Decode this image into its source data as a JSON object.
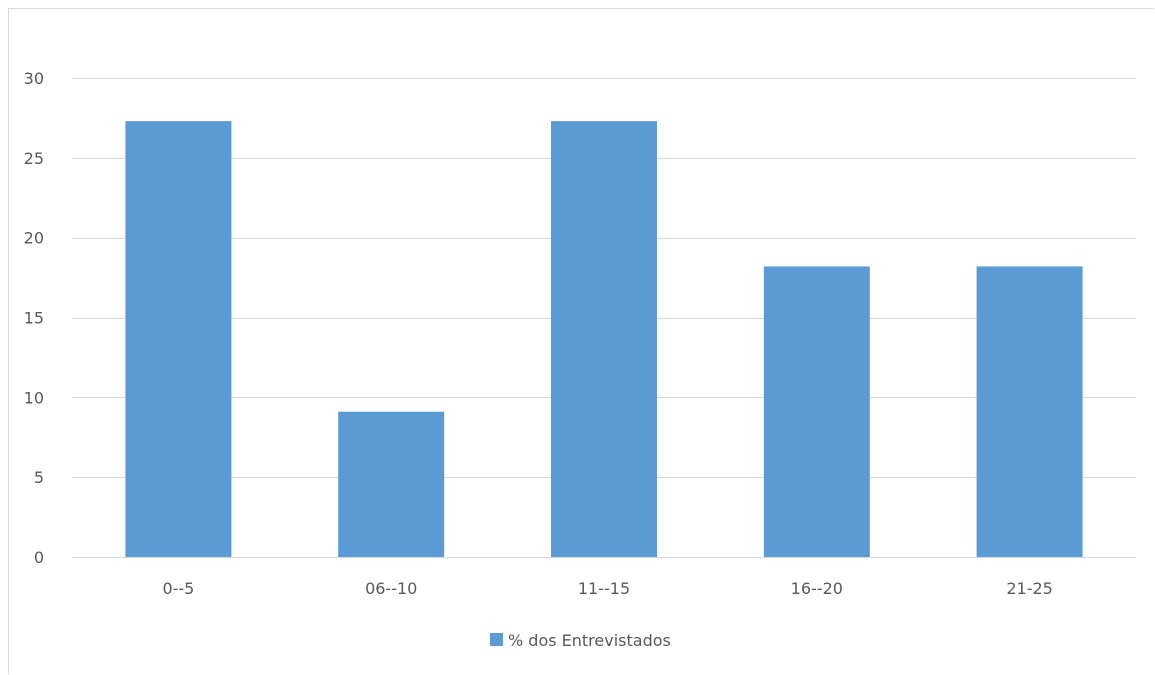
{
  "chart_data": {
    "type": "bar",
    "categories": [
      "0--5",
      "06--10",
      "11--15",
      "16--20",
      "21-25"
    ],
    "series": [
      {
        "name": "% dos Entrevistados",
        "values": [
          27.3,
          9.1,
          27.3,
          18.2,
          18.2
        ],
        "color": "#5b9bd5"
      }
    ],
    "ylim": [
      0,
      30
    ],
    "yticks": [
      0,
      5,
      10,
      15,
      20,
      25,
      30
    ],
    "grid": true,
    "legend": "bottom-center",
    "colors": {
      "gridline": "#d9d9d9",
      "text": "#595959",
      "bar": "#5b9bd5"
    }
  }
}
